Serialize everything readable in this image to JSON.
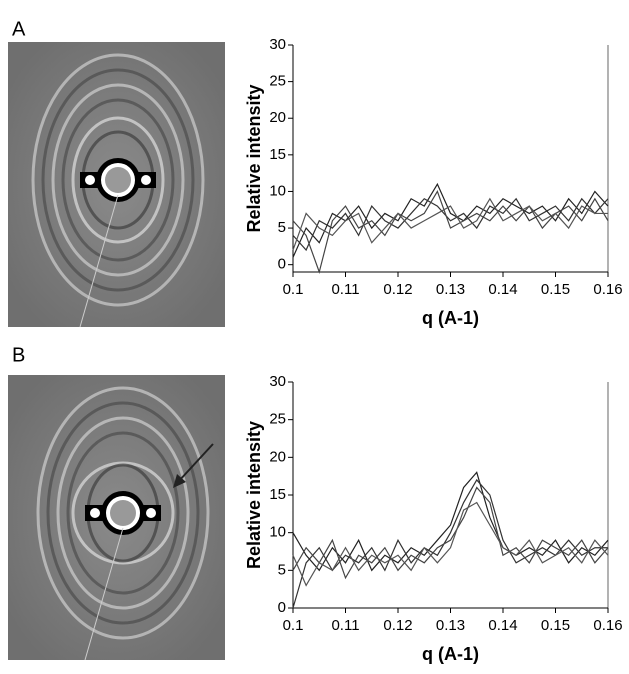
{
  "chart_data": [
    {
      "type": "line",
      "panel": "A",
      "x_label": "q (A-1)",
      "y_label": "Relative intensity",
      "x": [
        0.1,
        0.1025,
        0.105,
        0.1075,
        0.11,
        0.1125,
        0.115,
        0.1175,
        0.12,
        0.1225,
        0.125,
        0.1275,
        0.13,
        0.1325,
        0.135,
        0.1375,
        0.14,
        0.1425,
        0.145,
        0.1475,
        0.15,
        0.1525,
        0.155,
        0.1575,
        0.16
      ],
      "series": [
        {
          "color": "#222222",
          "values": [
            1,
            5,
            3,
            7,
            6,
            8,
            5,
            7,
            6,
            9,
            8,
            11,
            7,
            6,
            8,
            7,
            9,
            8,
            7,
            8,
            6,
            9,
            7,
            10,
            8
          ]
        },
        {
          "color": "#333333",
          "values": [
            4,
            2,
            6,
            5,
            7,
            4,
            8,
            6,
            5,
            7,
            9,
            8,
            6,
            7,
            5,
            8,
            7,
            9,
            6,
            7,
            8,
            6,
            9,
            7,
            9
          ]
        },
        {
          "color": "#444444",
          "values": [
            6,
            4,
            -1,
            6,
            8,
            5,
            6,
            4,
            7,
            6,
            7,
            10,
            5,
            6,
            7,
            6,
            8,
            6,
            8,
            5,
            7,
            8,
            6,
            9,
            6
          ]
        },
        {
          "color": "#555555",
          "values": [
            2,
            7,
            5,
            4,
            6,
            7,
            3,
            5,
            7,
            5,
            6,
            7,
            8,
            5,
            6,
            9,
            6,
            7,
            8,
            6,
            7,
            5,
            8,
            7,
            7
          ]
        }
      ],
      "xlim": [
        0.1,
        0.16
      ],
      "xticks": [
        0.1,
        0.11,
        0.12,
        0.13,
        0.14,
        0.15,
        0.16
      ],
      "ylim": [
        -1,
        30
      ],
      "yticks": [
        0,
        5,
        10,
        15,
        20,
        25,
        30
      ]
    },
    {
      "type": "line",
      "panel": "B",
      "x_label": "q (A-1)",
      "y_label": "Relative intensity",
      "x": [
        0.1,
        0.1025,
        0.105,
        0.1075,
        0.11,
        0.1125,
        0.115,
        0.1175,
        0.12,
        0.1225,
        0.125,
        0.1275,
        0.13,
        0.1325,
        0.135,
        0.1375,
        0.14,
        0.1425,
        0.145,
        0.1475,
        0.15,
        0.1525,
        0.155,
        0.1575,
        0.16
      ],
      "series": [
        {
          "color": "#222222",
          "values": [
            10,
            7,
            5,
            8,
            6,
            9,
            5,
            7,
            6,
            8,
            7,
            9,
            11,
            16,
            18,
            12,
            8,
            7,
            8,
            7,
            9,
            6,
            8,
            7,
            9
          ]
        },
        {
          "color": "#333333",
          "values": [
            0,
            6,
            8,
            5,
            7,
            6,
            8,
            5,
            9,
            6,
            8,
            7,
            10,
            14,
            17,
            15,
            9,
            6,
            7,
            8,
            7,
            9,
            7,
            8,
            8
          ]
        },
        {
          "color": "#444444",
          "values": [
            5,
            8,
            6,
            9,
            4,
            7,
            6,
            8,
            5,
            7,
            6,
            8,
            9,
            12,
            16,
            14,
            7,
            8,
            6,
            9,
            8,
            7,
            9,
            6,
            8
          ]
        },
        {
          "color": "#555555",
          "values": [
            7,
            3,
            6,
            5,
            8,
            5,
            7,
            6,
            7,
            5,
            8,
            6,
            8,
            13,
            14,
            11,
            8,
            7,
            9,
            6,
            7,
            8,
            6,
            9,
            7
          ]
        }
      ],
      "xlim": [
        0.1,
        0.16
      ],
      "xticks": [
        0.1,
        0.11,
        0.12,
        0.13,
        0.14,
        0.15,
        0.16
      ],
      "ylim": [
        0,
        30
      ],
      "yticks": [
        0,
        5,
        10,
        15,
        20,
        25,
        30
      ]
    }
  ]
}
